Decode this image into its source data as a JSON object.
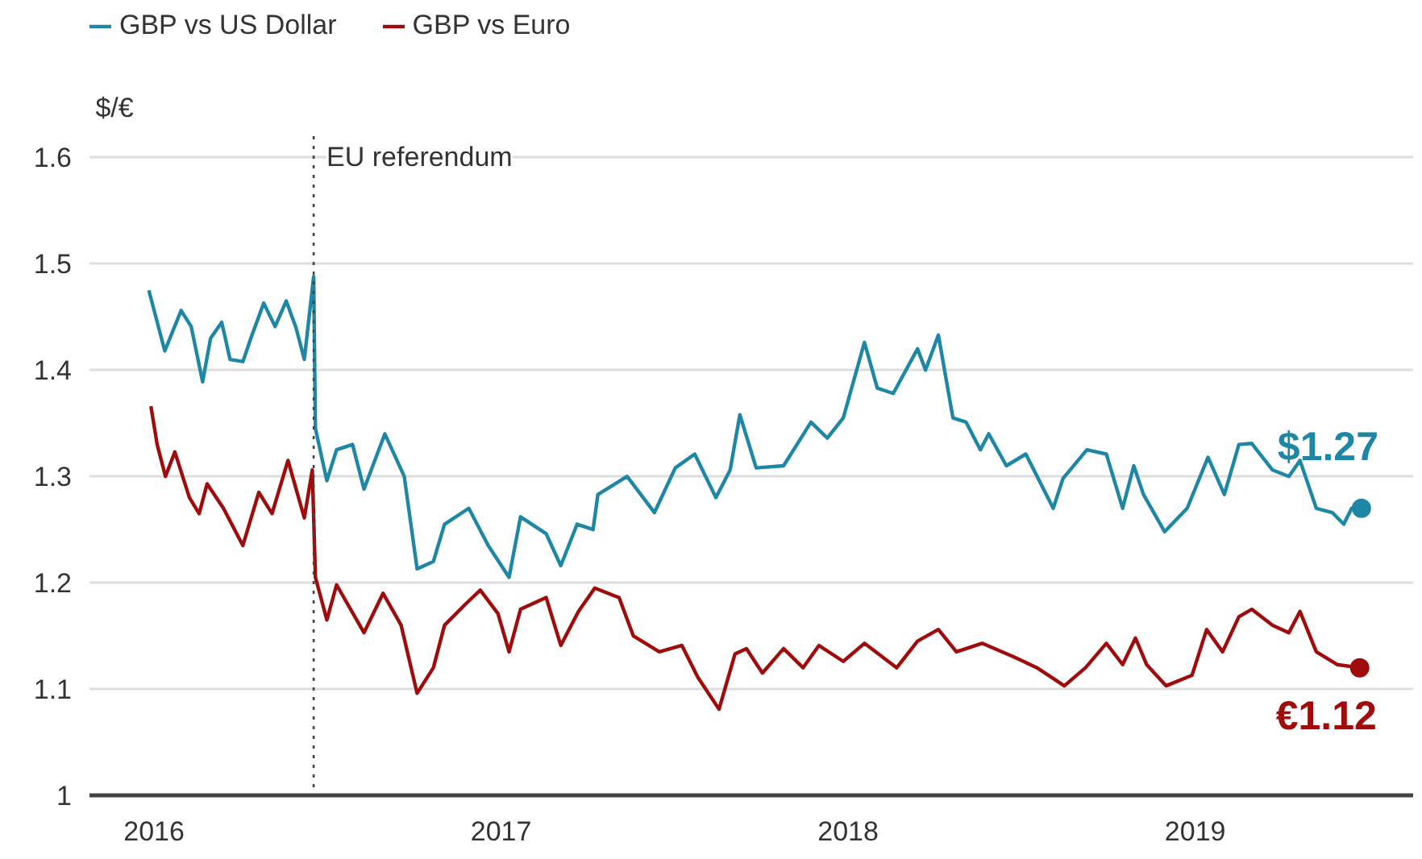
{
  "chart_data": {
    "type": "line",
    "ylabel": "$/€",
    "xlim": [
      2015.814,
      2019.628
    ],
    "xticks": [
      2016,
      2017,
      2018,
      2019
    ],
    "ylim": [
      1,
      1.62
    ],
    "yticks": [
      1,
      1.1,
      1.2,
      1.3,
      1.4,
      1.5,
      1.6
    ],
    "grid": "y",
    "legend": "top left",
    "line_style": "solid",
    "ref_lines": [
      {
        "axis": "x",
        "value": 2016.46,
        "label": "EU referendum",
        "line_style": "dotted",
        "color": "#444444"
      }
    ],
    "annotations": [
      {
        "text": "$1.27",
        "x": 2019.479,
        "y": 1.27
      },
      {
        "text": "€1.12",
        "x": 2019.474,
        "y": 1.12
      }
    ],
    "series": [
      {
        "name": "GBP vs US Dollar",
        "color": "#1e87a5",
        "x": [
          2015.985,
          2016.031,
          2016.078,
          2016.107,
          2016.14,
          2016.163,
          2016.195,
          2016.219,
          2016.256,
          2016.279,
          2016.316,
          2016.349,
          2016.381,
          2016.409,
          2016.433,
          2016.46,
          2016.465,
          2016.498,
          2016.526,
          2016.572,
          2016.605,
          2016.665,
          2016.721,
          2016.758,
          2016.805,
          2016.837,
          2016.907,
          2016.963,
          2017.023,
          2017.056,
          2017.13,
          2017.172,
          2017.219,
          2017.265,
          2017.279,
          2017.363,
          2017.442,
          2017.502,
          2017.558,
          2017.619,
          2017.66,
          2017.688,
          2017.735,
          2017.814,
          2017.893,
          2017.94,
          2017.986,
          2018.047,
          2018.084,
          2018.13,
          2018.2,
          2018.223,
          2018.26,
          2018.302,
          2018.34,
          2018.381,
          2018.405,
          2018.456,
          2018.512,
          2018.591,
          2018.619,
          2018.688,
          2018.744,
          2018.791,
          2018.823,
          2018.851,
          2018.912,
          2018.977,
          2019.037,
          2019.084,
          2019.126,
          2019.163,
          2019.223,
          2019.27,
          2019.302,
          2019.349,
          2019.395,
          2019.428,
          2019.451,
          2019.479
        ],
        "values": [
          1.475,
          1.418,
          1.456,
          1.441,
          1.389,
          1.43,
          1.445,
          1.41,
          1.408,
          1.43,
          1.463,
          1.441,
          1.465,
          1.44,
          1.41,
          1.488,
          1.345,
          1.296,
          1.325,
          1.33,
          1.288,
          1.34,
          1.3,
          1.213,
          1.22,
          1.255,
          1.27,
          1.235,
          1.205,
          1.262,
          1.246,
          1.216,
          1.255,
          1.25,
          1.283,
          1.3,
          1.266,
          1.308,
          1.321,
          1.28,
          1.306,
          1.358,
          1.308,
          1.31,
          1.351,
          1.336,
          1.355,
          1.426,
          1.383,
          1.378,
          1.42,
          1.4,
          1.433,
          1.355,
          1.351,
          1.325,
          1.34,
          1.31,
          1.321,
          1.27,
          1.298,
          1.325,
          1.321,
          1.27,
          1.31,
          1.283,
          1.248,
          1.27,
          1.318,
          1.283,
          1.33,
          1.331,
          1.306,
          1.3,
          1.315,
          1.27,
          1.266,
          1.255,
          1.27,
          1.27
        ]
      },
      {
        "name": "GBP vs Euro",
        "color": "#a00c0c",
        "x": [
          2015.991,
          2016.009,
          2016.033,
          2016.06,
          2016.102,
          2016.13,
          2016.153,
          2016.2,
          2016.256,
          2016.302,
          2016.34,
          2016.386,
          2016.433,
          2016.456,
          2016.465,
          2016.498,
          2016.526,
          2016.605,
          2016.66,
          2016.712,
          2016.758,
          2016.805,
          2016.837,
          2016.898,
          2016.94,
          2016.991,
          2017.023,
          2017.056,
          2017.13,
          2017.172,
          2017.223,
          2017.27,
          2017.34,
          2017.381,
          2017.456,
          2017.521,
          2017.567,
          2017.628,
          2017.674,
          2017.707,
          2017.753,
          2017.814,
          2017.87,
          2017.916,
          2017.986,
          2018.047,
          2018.14,
          2018.2,
          2018.26,
          2018.312,
          2018.386,
          2018.479,
          2018.544,
          2018.623,
          2018.684,
          2018.744,
          2018.791,
          2018.828,
          2018.86,
          2018.916,
          2018.991,
          2019.033,
          2019.079,
          2019.126,
          2019.163,
          2019.223,
          2019.27,
          2019.302,
          2019.349,
          2019.409,
          2019.474
        ],
        "values": [
          1.366,
          1.33,
          1.3,
          1.323,
          1.28,
          1.265,
          1.293,
          1.27,
          1.235,
          1.285,
          1.265,
          1.315,
          1.261,
          1.306,
          1.205,
          1.165,
          1.198,
          1.153,
          1.19,
          1.16,
          1.096,
          1.12,
          1.16,
          1.18,
          1.193,
          1.171,
          1.135,
          1.175,
          1.186,
          1.141,
          1.173,
          1.195,
          1.186,
          1.15,
          1.135,
          1.141,
          1.111,
          1.081,
          1.133,
          1.138,
          1.115,
          1.138,
          1.12,
          1.141,
          1.126,
          1.143,
          1.12,
          1.145,
          1.156,
          1.135,
          1.143,
          1.13,
          1.12,
          1.103,
          1.12,
          1.143,
          1.123,
          1.148,
          1.123,
          1.103,
          1.113,
          1.156,
          1.135,
          1.168,
          1.175,
          1.16,
          1.153,
          1.173,
          1.135,
          1.123,
          1.12
        ]
      }
    ]
  }
}
